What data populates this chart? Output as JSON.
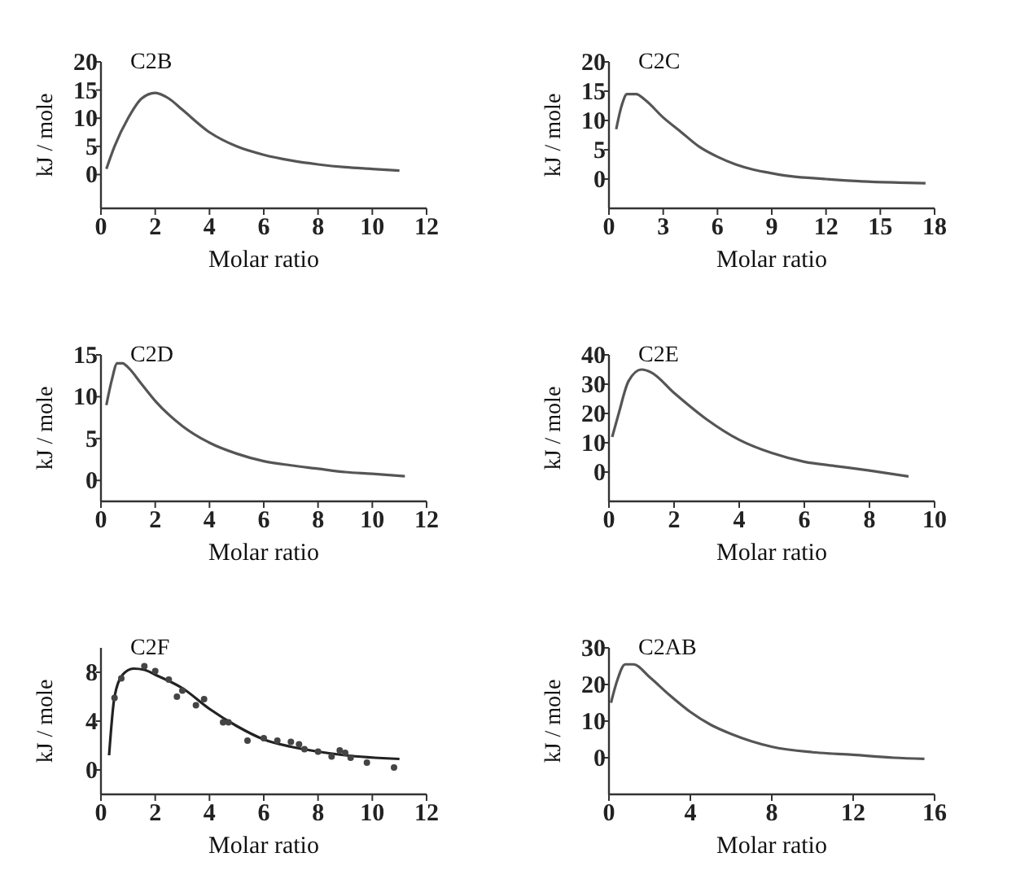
{
  "chart_data": [
    {
      "type": "line",
      "title": "C2B",
      "xlabel": "Molar ratio",
      "ylabel": "kJ / mole",
      "xlim": [
        0,
        12
      ],
      "ylim": [
        -6,
        20
      ],
      "xticks": [
        0,
        2,
        4,
        6,
        8,
        10,
        12
      ],
      "yticks": [
        0,
        5,
        10,
        15,
        20
      ],
      "series": [
        {
          "color": "#555555",
          "x": [
            0.2,
            0.5,
            1,
            1.5,
            2,
            2.5,
            3,
            4,
            5,
            6,
            7,
            8,
            9,
            10,
            11
          ],
          "values": [
            1,
            5,
            10,
            13.5,
            14.5,
            13.5,
            11.5,
            7.5,
            5,
            3.5,
            2.5,
            1.8,
            1.3,
            1,
            0.7
          ]
        }
      ]
    },
    {
      "type": "line",
      "title": "C2C",
      "xlabel": "Molar ratio",
      "ylabel": "kJ / mole",
      "xlim": [
        0,
        18
      ],
      "ylim": [
        -5,
        20
      ],
      "xticks": [
        0,
        3,
        6,
        9,
        12,
        15,
        18
      ],
      "yticks": [
        0,
        5,
        10,
        15,
        20
      ],
      "series": [
        {
          "color": "#555555",
          "x": [
            0.4,
            0.7,
            1,
            1.5,
            2,
            3,
            4,
            5,
            6,
            7,
            8,
            9,
            10,
            12,
            14,
            16,
            17.5
          ],
          "values": [
            8.5,
            12.5,
            14.5,
            14.5,
            13.5,
            10.5,
            8,
            5.5,
            3.8,
            2.5,
            1.6,
            1,
            0.5,
            0,
            -0.4,
            -0.6,
            -0.7
          ]
        }
      ]
    },
    {
      "type": "line",
      "title": "C2D",
      "xlabel": "Molar ratio",
      "ylabel": "kJ / mole",
      "xlim": [
        0,
        12
      ],
      "ylim": [
        -2.5,
        15
      ],
      "xticks": [
        0,
        2,
        4,
        6,
        8,
        10,
        12
      ],
      "yticks": [
        0,
        5,
        10,
        15
      ],
      "series": [
        {
          "color": "#555555",
          "x": [
            0.2,
            0.4,
            0.6,
            0.8,
            1,
            1.5,
            2,
            3,
            4,
            5,
            6,
            7,
            8,
            9,
            10,
            11.2
          ],
          "values": [
            9,
            12,
            14,
            14,
            13.5,
            11.5,
            9.5,
            6.5,
            4.5,
            3.2,
            2.3,
            1.8,
            1.4,
            1,
            0.8,
            0.5
          ]
        }
      ]
    },
    {
      "type": "line",
      "title": "C2E",
      "xlabel": "Molar ratio",
      "ylabel": "kJ / mole",
      "xlim": [
        0,
        10
      ],
      "ylim": [
        -10,
        40
      ],
      "xticks": [
        0,
        2,
        4,
        6,
        8,
        10
      ],
      "yticks": [
        0,
        10,
        20,
        30,
        40
      ],
      "series": [
        {
          "color": "#555555",
          "x": [
            0.1,
            0.3,
            0.6,
            1,
            1.3,
            2,
            3,
            4,
            5,
            6,
            7,
            8,
            9.2
          ],
          "values": [
            12,
            20,
            31,
            35,
            34,
            27,
            18,
            11,
            6.5,
            3.5,
            2,
            0.5,
            -1.5
          ]
        }
      ]
    },
    {
      "type": "line",
      "title": "C2F",
      "xlabel": "Molar ratio",
      "ylabel": "kJ / mole",
      "xlim": [
        0,
        12
      ],
      "ylim": [
        -2,
        10
      ],
      "xticks": [
        0,
        2,
        4,
        6,
        8,
        10,
        12
      ],
      "yticks": [
        0,
        4,
        8
      ],
      "series": [
        {
          "color": "#222222",
          "x": [
            0.3,
            0.5,
            0.8,
            1.2,
            1.6,
            2,
            3,
            4,
            5,
            6,
            7,
            8,
            9,
            11
          ],
          "values": [
            1.2,
            6,
            7.8,
            8.3,
            8.2,
            7.8,
            6.7,
            5,
            3.6,
            2.5,
            1.9,
            1.5,
            1.2,
            0.9
          ]
        },
        {
          "type": "scatter",
          "marker": "circle",
          "color": "#444444",
          "x": [
            0.5,
            0.75,
            1.6,
            2,
            2.5,
            2.8,
            3,
            3.5,
            3.8,
            4.5,
            4.7,
            5.4,
            6,
            6.5,
            7,
            7.3,
            7.5,
            8,
            8.5,
            8.8,
            9,
            9.2,
            9.8,
            10.8
          ],
          "values": [
            5.9,
            7.5,
            8.5,
            8.1,
            7.4,
            6,
            6.5,
            5.3,
            5.8,
            3.9,
            3.9,
            2.4,
            2.6,
            2.4,
            2.3,
            2.1,
            1.7,
            1.5,
            1.1,
            1.6,
            1.4,
            1,
            0.6,
            0.2
          ]
        }
      ]
    },
    {
      "type": "line",
      "title": "C2AB",
      "xlabel": "Molar ratio",
      "ylabel": "kJ / mole",
      "xlim": [
        0,
        16
      ],
      "ylim": [
        -10,
        30
      ],
      "xticks": [
        0,
        4,
        8,
        12,
        16
      ],
      "yticks": [
        0,
        10,
        20,
        30
      ],
      "series": [
        {
          "color": "#555555",
          "x": [
            0.1,
            0.4,
            0.8,
            1.2,
            2,
            3,
            4,
            5,
            6,
            7,
            8,
            10,
            12,
            14,
            15.5
          ],
          "values": [
            15,
            21,
            25.5,
            25.5,
            22,
            17,
            12.5,
            9,
            6.5,
            4.5,
            3,
            1.5,
            0.8,
            0,
            -0.3
          ]
        }
      ]
    }
  ]
}
